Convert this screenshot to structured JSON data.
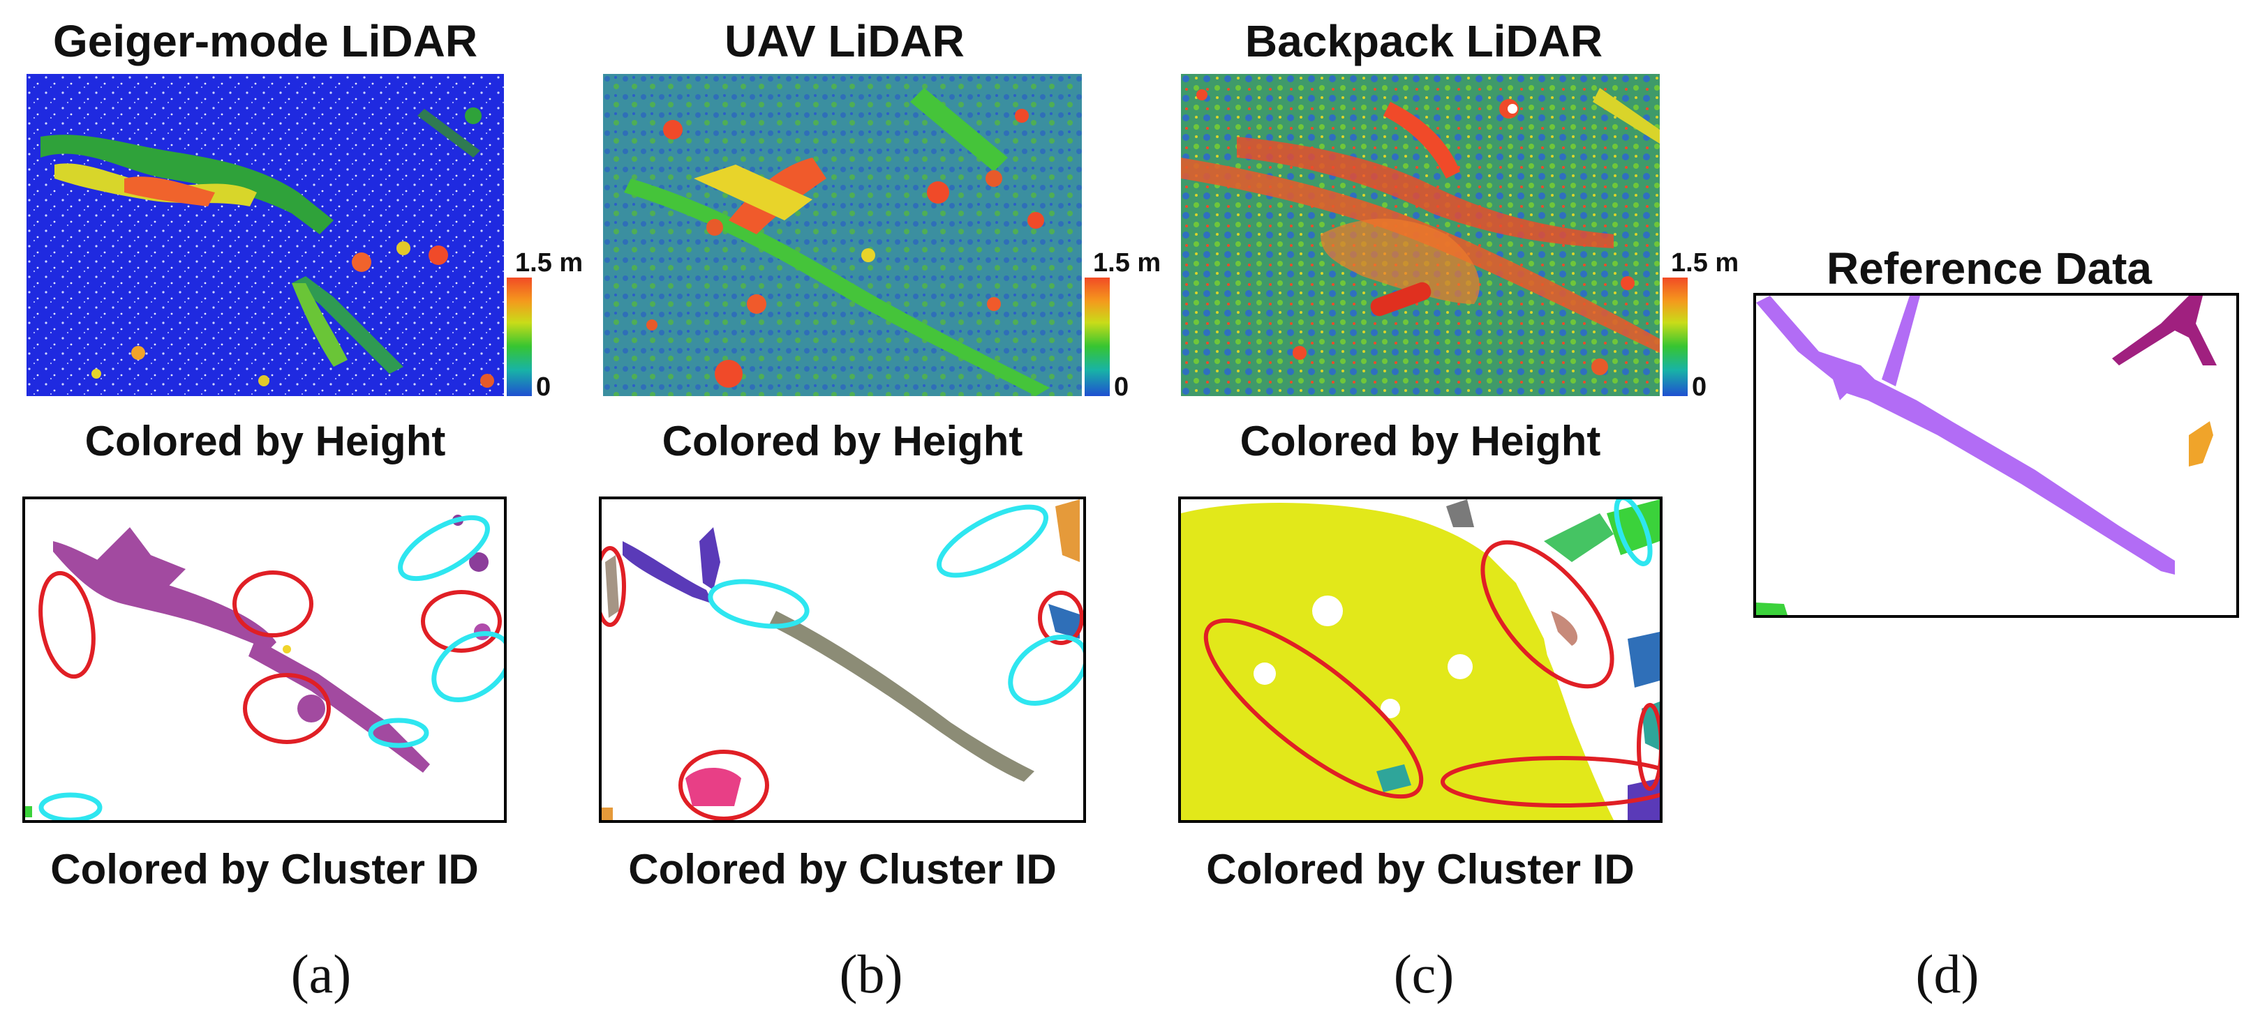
{
  "panels": [
    {
      "title": "Geiger-mode LiDAR",
      "height_caption": "Colored by Height",
      "cluster_caption": "Colored by Cluster ID",
      "letter": "(a)"
    },
    {
      "title": "UAV LiDAR",
      "height_caption": "Colored by Height",
      "cluster_caption": "Colored by Cluster ID",
      "letter": "(b)"
    },
    {
      "title": "Backpack LiDAR",
      "height_caption": "Colored by Height",
      "cluster_caption": "Colored by Cluster ID",
      "letter": "(c)"
    },
    {
      "title": "Reference Data",
      "letter": "(d)"
    }
  ],
  "colorbar": {
    "max_label": "1.5 m",
    "min_label": "0"
  },
  "colors": {
    "ellipse_red": "#e01f25",
    "ellipse_cyan": "#2ee6f0",
    "height_low": "#1f4fd1",
    "height_high": "#f24b25",
    "ref_main": "#b26cf5",
    "ref_right": "#a0207f",
    "ref_orange": "#f0a42a",
    "ref_green": "#3bd23b"
  }
}
